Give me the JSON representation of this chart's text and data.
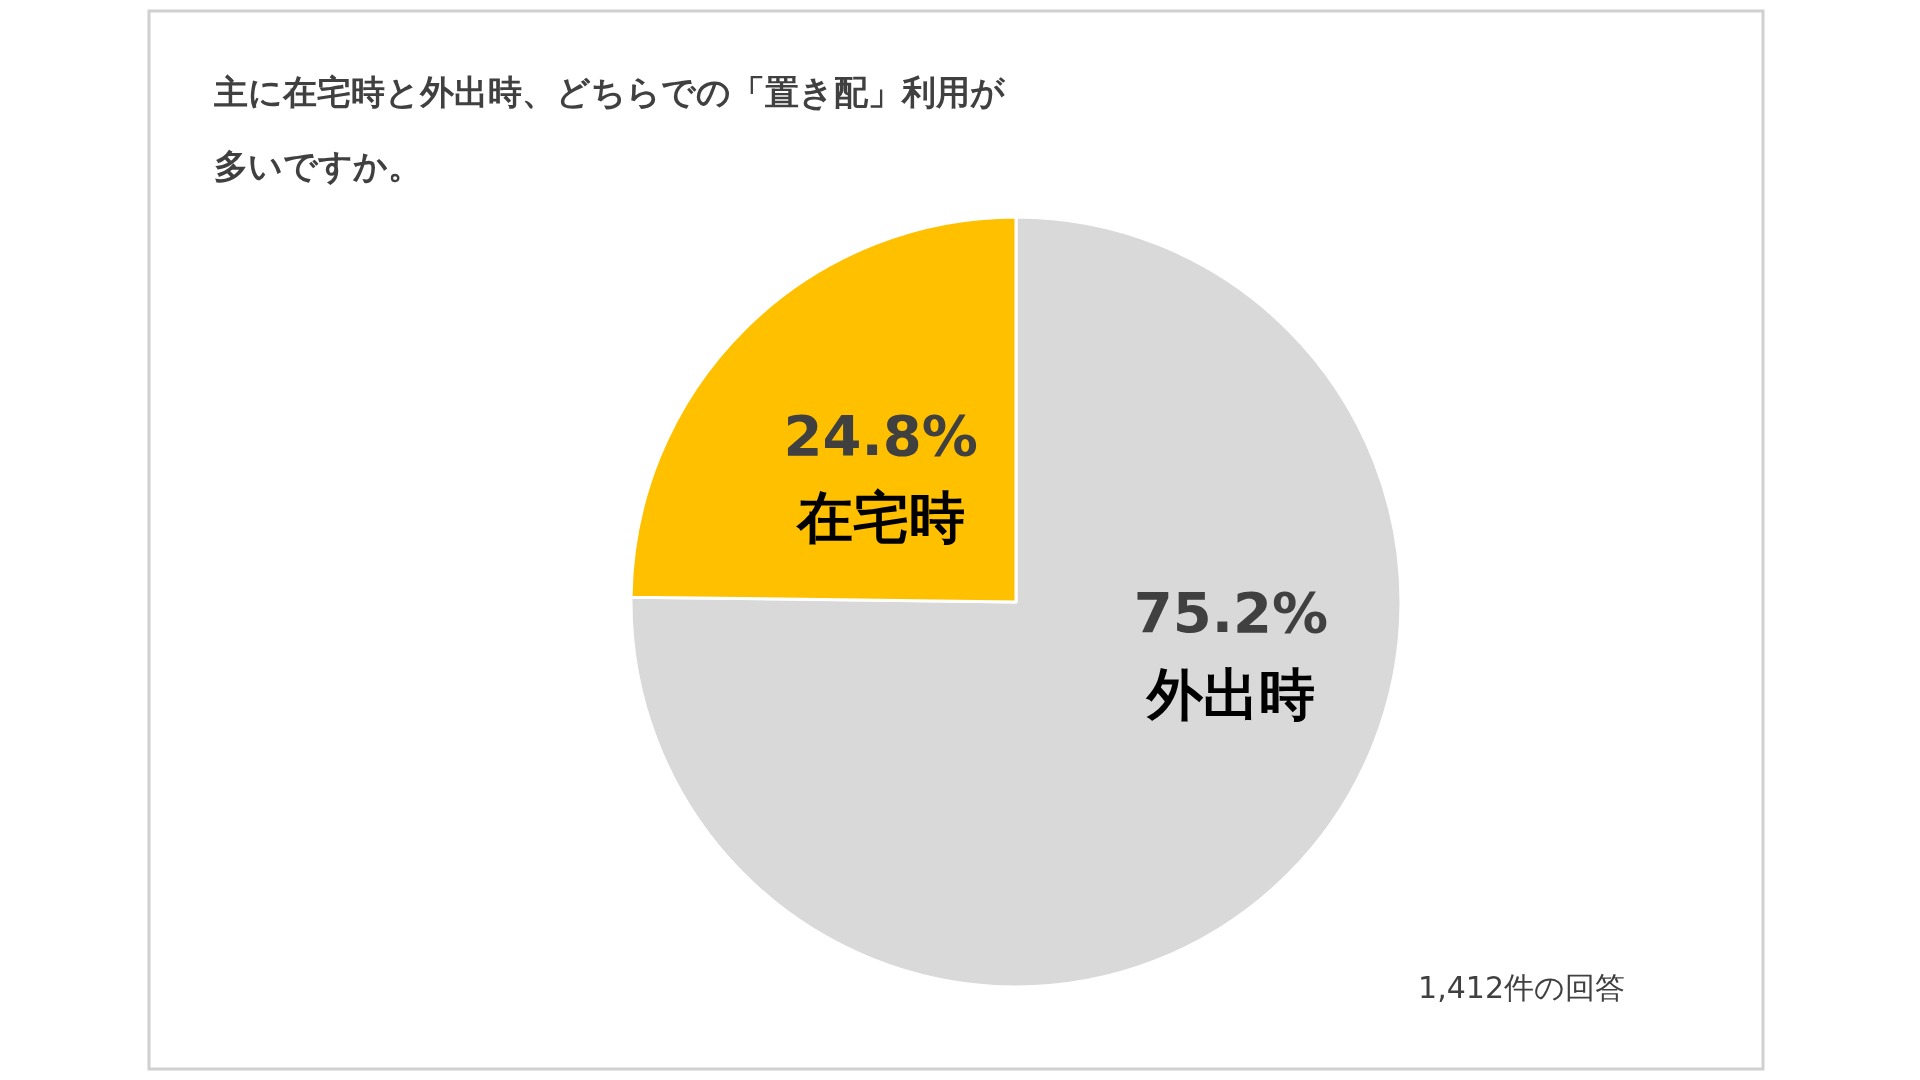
{
  "chart_data": {
    "type": "pie",
    "title": "主に在宅時と外出時、どちらでの「置き配」利用が多いですか。",
    "categories": [
      "外出時",
      "在宅時"
    ],
    "values": [
      75.2,
      24.8
    ],
    "value_labels": [
      "75.2%",
      "24.8%"
    ],
    "colors": [
      "#d9d9d9",
      "#ffc000"
    ],
    "annotations": [
      "1,412件の回答"
    ]
  }
}
